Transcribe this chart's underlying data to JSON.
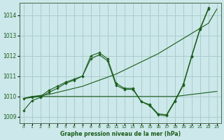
{
  "background_color": "#cce8ea",
  "grid_color": "#aacccc",
  "line_color": "#1a5c1a",
  "title": "Graphe pression niveau de la mer (hPa)",
  "xlim": [
    -0.5,
    23.5
  ],
  "ylim": [
    1008.7,
    1014.6
  ],
  "xticks": [
    0,
    1,
    2,
    3,
    4,
    5,
    6,
    7,
    8,
    9,
    10,
    11,
    12,
    13,
    14,
    15,
    16,
    17,
    18,
    19,
    20,
    21,
    22,
    23
  ],
  "yticks": [
    1009,
    1010,
    1011,
    1012,
    1013,
    1014
  ],
  "series": [
    {
      "x": [
        0,
        1,
        2,
        3,
        4,
        5,
        6,
        7,
        8,
        9,
        10,
        11,
        12,
        13,
        14,
        15,
        16,
        17,
        18,
        19,
        20,
        21,
        22,
        23
      ],
      "y": [
        1009.9,
        1010.0,
        1010.05,
        1010.1,
        1010.2,
        1010.3,
        1010.4,
        1010.5,
        1010.65,
        1010.8,
        1010.95,
        1011.1,
        1011.3,
        1011.5,
        1011.7,
        1011.9,
        1012.1,
        1012.35,
        1012.6,
        1012.85,
        1013.1,
        1013.35,
        1013.6,
        1014.3
      ],
      "marker": false
    },
    {
      "x": [
        0,
        1,
        2,
        3,
        4,
        5,
        6,
        7,
        8,
        9,
        10,
        11,
        12,
        13,
        14,
        15,
        16,
        17,
        18,
        19,
        20,
        21,
        22,
        23
      ],
      "y": [
        1009.9,
        1009.95,
        1010.0,
        1010.3,
        1010.5,
        1010.7,
        1010.85,
        1011.0,
        1012.0,
        1012.15,
        1011.85,
        1010.65,
        1010.4,
        1010.4,
        1009.75,
        1009.6,
        1009.15,
        1009.1,
        1009.8,
        1010.6,
        1012.0,
        1013.35,
        1014.35,
        null
      ],
      "marker": true
    },
    {
      "x": [
        0,
        1,
        2,
        3,
        4,
        5,
        6,
        7,
        8,
        9,
        10,
        11,
        12,
        13,
        14,
        15,
        16,
        17,
        18,
        19,
        20,
        21,
        22,
        23
      ],
      "y": [
        1009.9,
        1010.0,
        1010.0,
        1010.0,
        1010.0,
        1010.0,
        1010.0,
        1010.0,
        1010.0,
        1010.0,
        1010.0,
        1010.0,
        1010.0,
        1010.0,
        1010.0,
        1010.0,
        1010.0,
        1010.0,
        1010.0,
        1010.05,
        1010.1,
        1010.15,
        1010.2,
        1010.25
      ],
      "marker": false
    },
    {
      "x": [
        0,
        1,
        2,
        3,
        4,
        5,
        6,
        7,
        8,
        9,
        10,
        11,
        12,
        13,
        14,
        15,
        16,
        17,
        18,
        19,
        20,
        21,
        22,
        23
      ],
      "y": [
        1009.3,
        1009.8,
        1009.95,
        1010.2,
        1010.4,
        1010.65,
        1010.8,
        1011.0,
        1011.85,
        1012.05,
        1011.75,
        1010.55,
        1010.35,
        1010.35,
        1009.75,
        1009.55,
        1009.1,
        1009.05,
        1009.75,
        1010.55,
        1011.95,
        1013.3,
        1014.3,
        null
      ],
      "marker": true
    }
  ]
}
